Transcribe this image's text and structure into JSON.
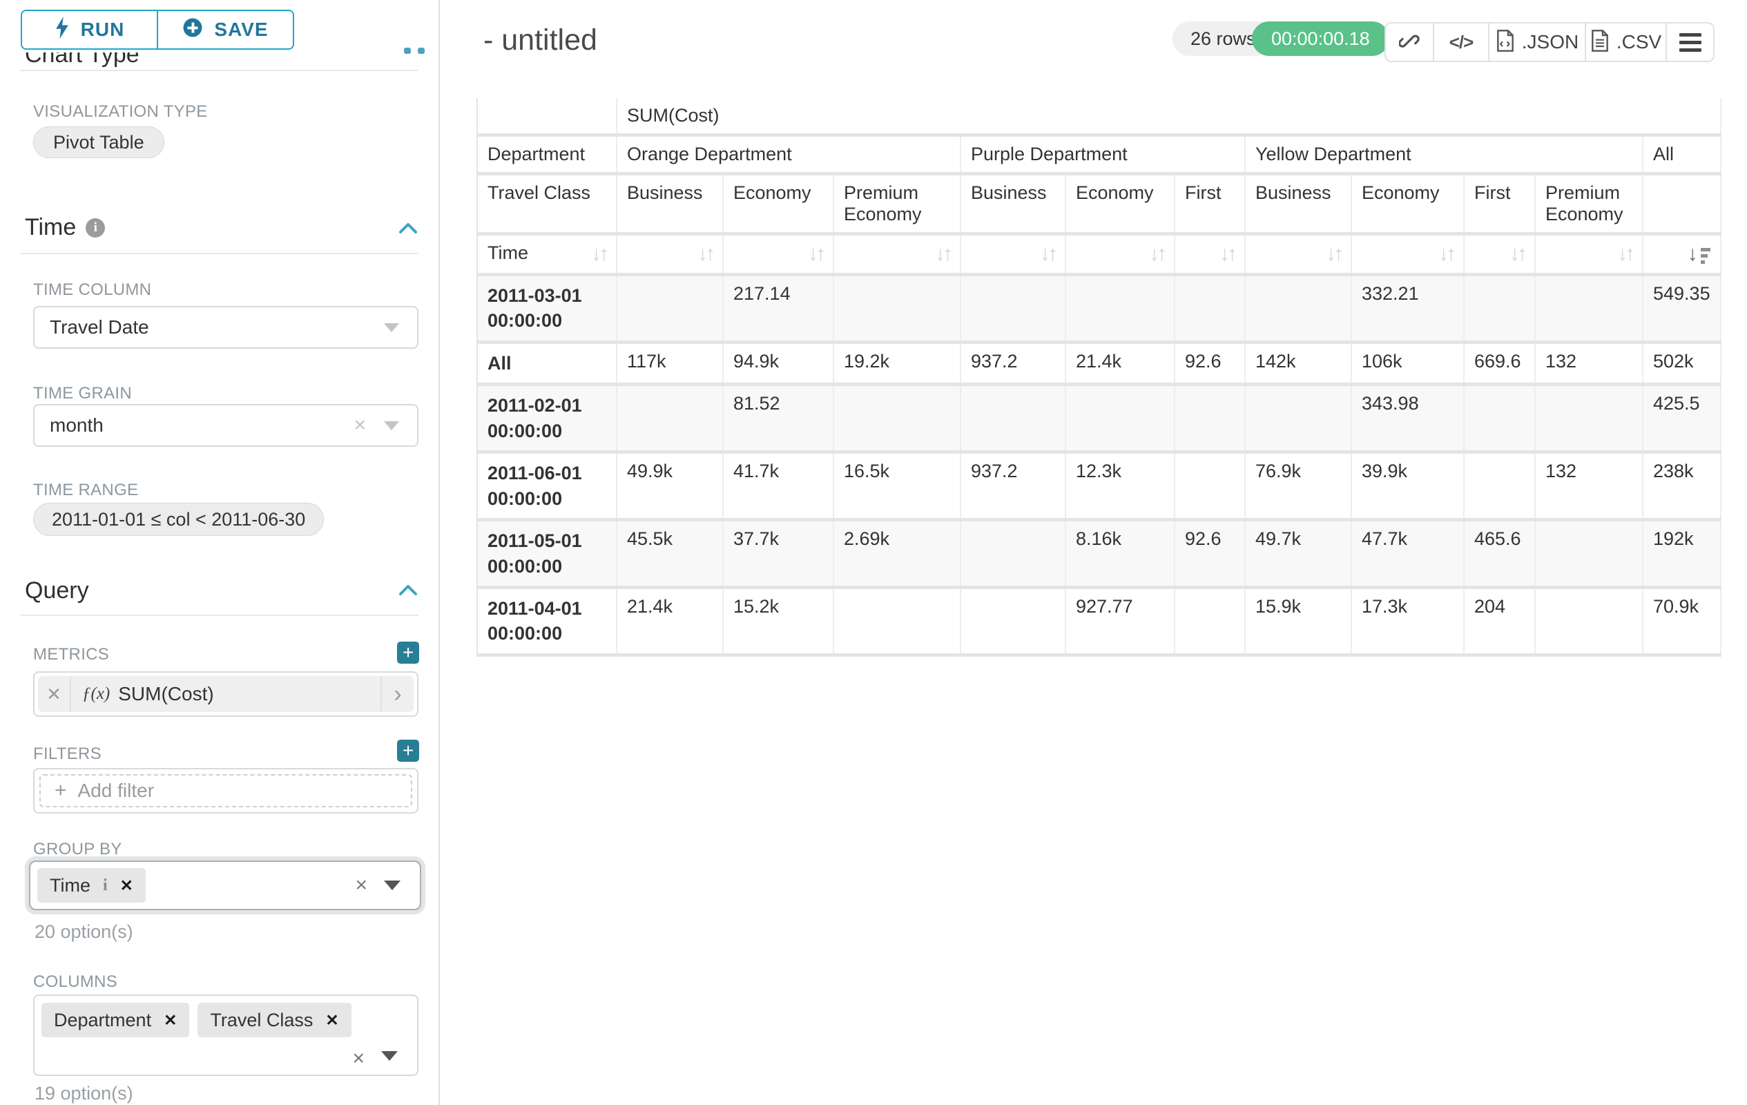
{
  "colors": {
    "accent_teal": "#20a7c9",
    "add_button_teal": "#287e95",
    "timer_green": "#5ac189",
    "pill_gray": "#f0f0f0",
    "label_gray": "#8e979e",
    "table_border": "#e4e4e4",
    "stripe_row": "#f8f8f8"
  },
  "icons": {
    "run": "lightning-icon",
    "save": "plus-circle-icon",
    "section_collapse": "chevron-up-icon",
    "time_info": "info-icon",
    "toolbar": [
      "link-icon",
      "code-icon",
      "json-file-icon",
      "csv-file-icon",
      "menu-icon"
    ],
    "sort_inactive": "sort-up-down-icon",
    "sort_active": "sort-descending-icon"
  },
  "left_panel": {
    "run_label": "RUN",
    "save_label": "SAVE",
    "chart_type_title": "Chart Type",
    "viz_type_label": "VISUALIZATION TYPE",
    "viz_type_value": "Pivot Table",
    "time_section_title": "Time",
    "time_column_label": "TIME COLUMN",
    "time_column_value": "Travel Date",
    "time_grain_label": "TIME GRAIN",
    "time_grain_value": "month",
    "time_range_label": "TIME RANGE",
    "time_range_value": "2011-01-01 ≤ col < 2011-06-30",
    "query_section_title": "Query",
    "metrics_label": "METRICS",
    "metric_fx": "ƒ(x)",
    "metric_value": "SUM(Cost)",
    "filters_label": "FILTERS",
    "add_filter_placeholder": "Add filter",
    "group_by_label": "GROUP BY",
    "group_by_chips": [
      "Time"
    ],
    "group_by_hint": "20 option(s)",
    "columns_label": "COLUMNS",
    "columns_chips": [
      "Department",
      "Travel Class"
    ],
    "columns_hint": "19 option(s)"
  },
  "header": {
    "title": "- untitled",
    "row_count": "26 rows",
    "timer": "00:00:00.18",
    "export_json_label": ".JSON",
    "export_csv_label": ".CSV",
    "code_glyph": "</>"
  },
  "chart_data": {
    "type": "table",
    "title": "SUM(Cost)",
    "corner_row2_label": "Department",
    "corner_row3_label": "Travel Class",
    "corner_row4_label": "Time",
    "column_groups": [
      {
        "label": "Orange Department",
        "span": 3
      },
      {
        "label": "Purple Department",
        "span": 3
      },
      {
        "label": "Yellow Department",
        "span": 4
      },
      {
        "label": "All",
        "span": 1
      }
    ],
    "travel_class_headers": [
      "Business",
      "Economy",
      "Premium Economy",
      "Business",
      "Economy",
      "First",
      "Business",
      "Economy",
      "First",
      "Premium Economy",
      ""
    ],
    "sort": {
      "active_column_index": 10,
      "direction": "desc"
    },
    "rows": [
      {
        "label": "2011-03-01 00:00:00",
        "values": [
          "",
          "217.14",
          "",
          "",
          "",
          "",
          "",
          "332.21",
          "",
          "",
          "549.35"
        ]
      },
      {
        "label": "All",
        "values": [
          "117k",
          "94.9k",
          "19.2k",
          "937.2",
          "21.4k",
          "92.6",
          "142k",
          "106k",
          "669.6",
          "132",
          "502k"
        ]
      },
      {
        "label": "2011-02-01 00:00:00",
        "values": [
          "",
          "81.52",
          "",
          "",
          "",
          "",
          "",
          "343.98",
          "",
          "",
          "425.5"
        ]
      },
      {
        "label": "2011-06-01 00:00:00",
        "values": [
          "49.9k",
          "41.7k",
          "16.5k",
          "937.2",
          "12.3k",
          "",
          "76.9k",
          "39.9k",
          "",
          "132",
          "238k"
        ]
      },
      {
        "label": "2011-05-01 00:00:00",
        "values": [
          "45.5k",
          "37.7k",
          "2.69k",
          "",
          "8.16k",
          "92.6",
          "49.7k",
          "47.7k",
          "465.6",
          "",
          "192k"
        ]
      },
      {
        "label": "2011-04-01 00:00:00",
        "values": [
          "21.4k",
          "15.2k",
          "",
          "",
          "927.77",
          "",
          "15.9k",
          "17.3k",
          "204",
          "",
          "70.9k"
        ]
      }
    ]
  }
}
